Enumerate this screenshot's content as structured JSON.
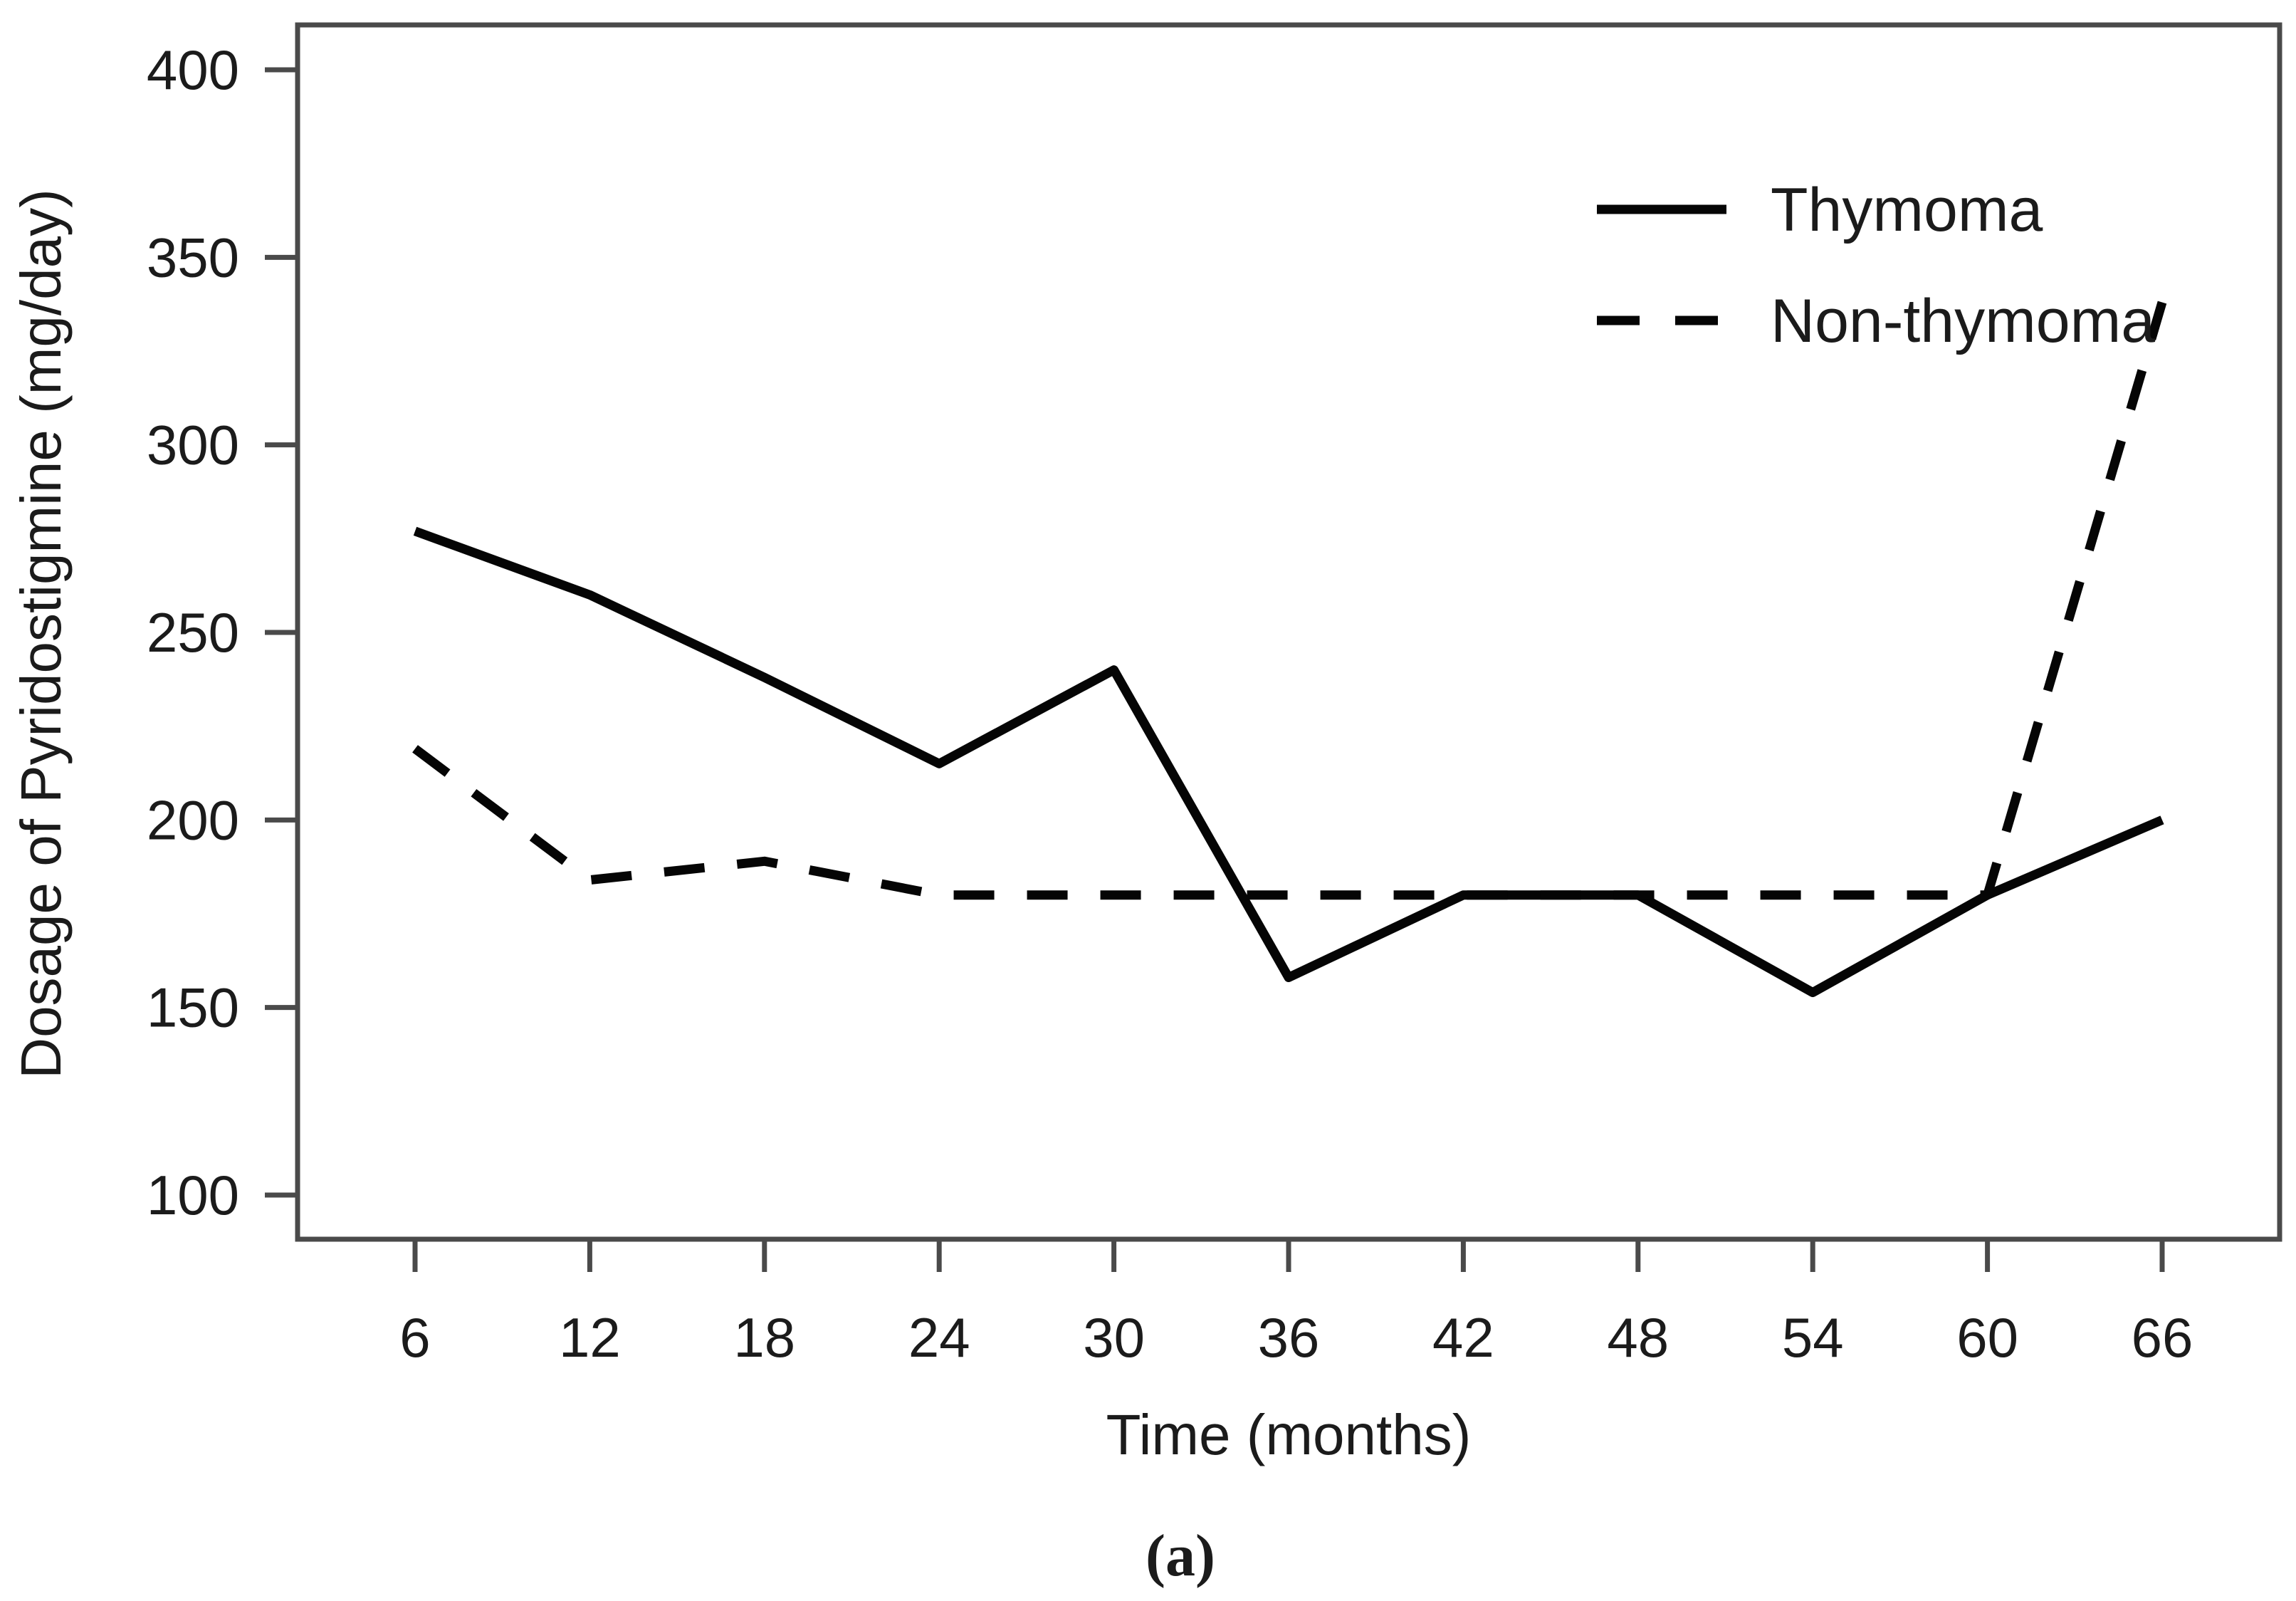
{
  "figure": {
    "caption": "(a)"
  },
  "chart_data": {
    "type": "line",
    "title": "",
    "xlabel": "Time (months)",
    "ylabel": "Dosage of Pyridostigmine (mg/day)",
    "x": [
      6,
      12,
      18,
      24,
      30,
      36,
      42,
      48,
      54,
      60,
      66
    ],
    "x_ticks": [
      6,
      12,
      18,
      24,
      30,
      36,
      42,
      48,
      54,
      60,
      66
    ],
    "y_ticks": [
      100,
      150,
      200,
      250,
      300,
      350,
      400
    ],
    "xlim": [
      2,
      70
    ],
    "ylim": [
      88,
      412
    ],
    "grid": false,
    "legend_position": "top-right",
    "line_color": "#050505",
    "series": [
      {
        "name": "Thymoma",
        "style": "solid",
        "color": "#050505",
        "values": [
          277,
          260,
          238,
          215,
          240,
          158,
          180,
          180,
          154,
          180,
          200
        ]
      },
      {
        "name": "Non-thymoma",
        "style": "dashed",
        "color": "#050505",
        "values": [
          219,
          184,
          189,
          180,
          180,
          180,
          180,
          180,
          180,
          180,
          338
        ]
      }
    ]
  }
}
